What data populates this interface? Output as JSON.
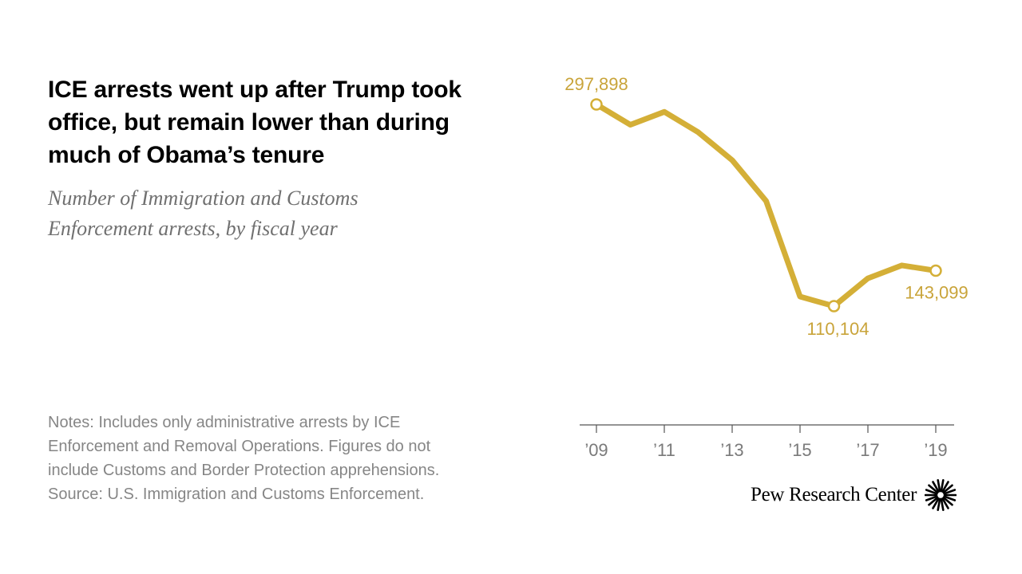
{
  "header": {
    "title_lines": [
      "ICE arrests went up after Trump took",
      "office, but remain lower than during",
      "much of Obama’s tenure"
    ],
    "subtitle_lines": [
      "Number of Immigration and Customs",
      "Enforcement arrests, by fiscal year"
    ]
  },
  "notes": {
    "lines": [
      "Notes: Includes only administrative arrests by ICE",
      "Enforcement and Removal Operations. Figures do not",
      "include Customs and Border Protection apprehensions.",
      "Source: U.S. Immigration and Customs Enforcement."
    ]
  },
  "branding": {
    "name": "Pew Research Center",
    "icon": "pew-sunburst-icon"
  },
  "colors": {
    "line": "#d4af37",
    "label": "#c9a43a",
    "axis": "#555555",
    "tick_label": "#7a7a7a",
    "title": "#000000",
    "subtitle": "#707070",
    "notes": "#868686"
  },
  "chart_data": {
    "type": "line",
    "title": "ICE arrests went up after Trump took office, but remain lower than during much of Obama’s tenure",
    "subtitle": "Number of Immigration and Customs Enforcement arrests, by fiscal year",
    "xlabel": "",
    "ylabel": "",
    "x": [
      2009,
      2010,
      2011,
      2012,
      2013,
      2014,
      2015,
      2016,
      2017,
      2018,
      2019
    ],
    "x_tick_values": [
      2009,
      2011,
      2013,
      2015,
      2017,
      2019
    ],
    "x_tick_labels": [
      "’09",
      "’11",
      "’13",
      "’15",
      "’17",
      "’19"
    ],
    "series": [
      {
        "values": [
          297898,
          279000,
          291000,
          272000,
          246000,
          208000,
          119000,
          110104,
          136000,
          148000,
          143099
        ]
      }
    ],
    "highlighted_points": [
      {
        "x": 2009,
        "label": "297,898",
        "label_position": "above"
      },
      {
        "x": 2016,
        "label": "110,104",
        "label_position": "below"
      },
      {
        "x": 2019,
        "label": "143,099",
        "label_position": "below"
      }
    ],
    "ylim": [
      0,
      300000
    ],
    "y_axis_visible": false,
    "grid": false,
    "legend": "none"
  }
}
